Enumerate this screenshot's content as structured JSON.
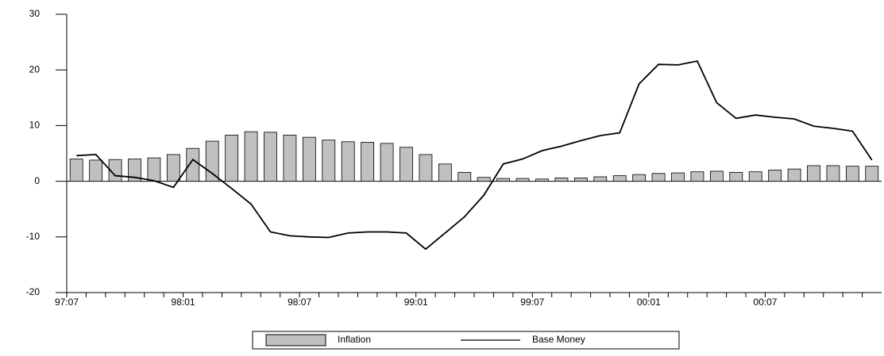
{
  "chart_data": {
    "type": "bar_line",
    "categories": [
      "97:07",
      null,
      null,
      null,
      null,
      null,
      "98:01",
      null,
      null,
      null,
      null,
      null,
      "98:07",
      null,
      null,
      null,
      null,
      null,
      "99:01",
      null,
      null,
      null,
      null,
      null,
      "99:07",
      null,
      null,
      null,
      null,
      null,
      "00:01",
      null,
      null,
      null,
      null,
      null,
      "00:07",
      null,
      null,
      null,
      null,
      null
    ],
    "series": [
      {
        "name": "Inflation",
        "type": "bar",
        "color": "#c0c0c0",
        "values": [
          4.0,
          3.8,
          3.9,
          4.0,
          4.2,
          4.8,
          5.9,
          7.2,
          8.3,
          8.9,
          8.8,
          8.3,
          7.9,
          7.4,
          7.1,
          7.0,
          6.8,
          6.1,
          4.8,
          3.1,
          1.6,
          0.7,
          0.5,
          0.5,
          0.4,
          0.6,
          0.6,
          0.8,
          1.0,
          1.2,
          1.4,
          1.5,
          1.7,
          1.8,
          1.6,
          1.7,
          2.0,
          2.2,
          2.8,
          2.8,
          2.7,
          2.7
        ]
      },
      {
        "name": "Base Money",
        "type": "line",
        "color": "#000000",
        "values": [
          4.6,
          4.8,
          1.0,
          0.7,
          0.1,
          -1.1,
          3.9,
          1.4,
          -1.3,
          -4.1,
          -9.1,
          -9.8,
          -10.0,
          -10.1,
          -9.3,
          -9.1,
          -9.1,
          -9.3,
          -12.2,
          -9.3,
          -6.4,
          -2.5,
          3.1,
          4.0,
          5.5,
          6.3,
          7.3,
          8.2,
          8.7,
          17.5,
          21.0,
          20.9,
          21.6,
          14.1,
          11.3,
          11.9,
          11.5,
          11.2,
          9.9,
          9.5,
          9.0,
          3.8
        ]
      }
    ],
    "ylim": [
      -20,
      30
    ],
    "yticks": [
      -20,
      -10,
      0,
      10,
      20,
      30
    ]
  }
}
